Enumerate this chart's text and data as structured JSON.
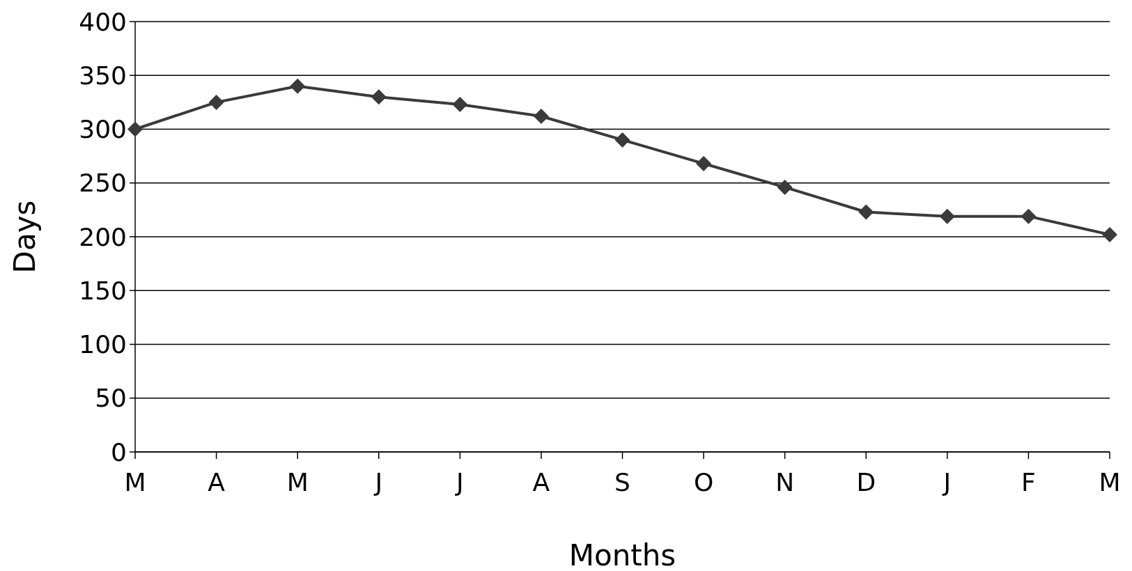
{
  "chart_data": {
    "type": "line",
    "xlabel": "Months",
    "ylabel": "Days",
    "categories": [
      "M",
      "A",
      "M",
      "J",
      "J",
      "A",
      "S",
      "O",
      "N",
      "D",
      "J",
      "F",
      "M"
    ],
    "series": [
      {
        "color": "#3a3a3a",
        "values": [
          300,
          325,
          340,
          330,
          323,
          312,
          290,
          268,
          246,
          223,
          219,
          219,
          202
        ]
      }
    ],
    "ylim": [
      0,
      400
    ],
    "yticks": [
      0,
      50,
      100,
      150,
      200,
      250,
      300,
      350,
      400
    ],
    "grid": "y",
    "marker": "diamond",
    "line_style": "solid"
  }
}
